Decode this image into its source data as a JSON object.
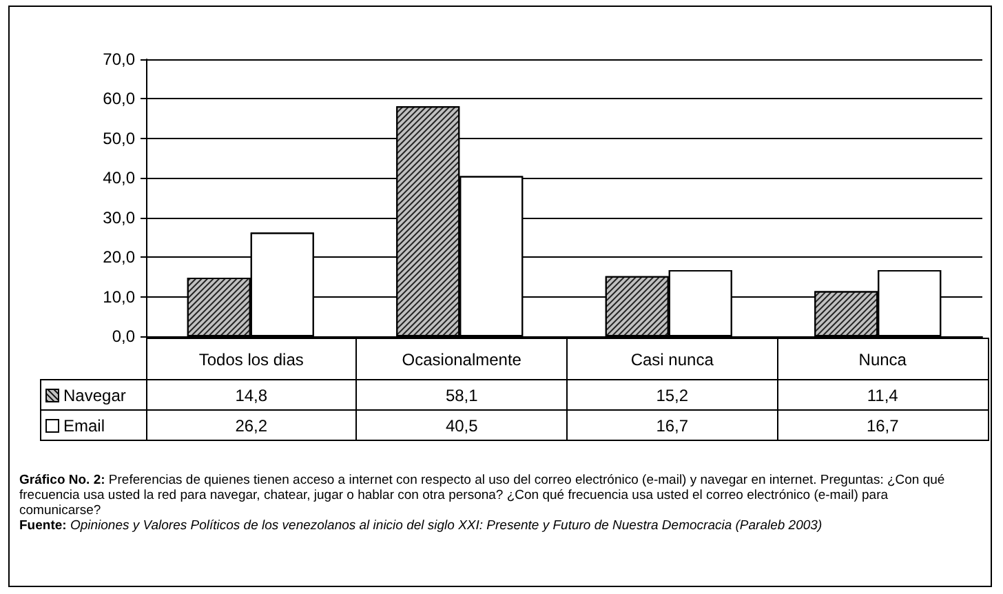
{
  "chart_data": {
    "type": "bar",
    "categories": [
      "Todos los dias",
      "Ocasionalmente",
      "Casi nunca",
      "Nunca"
    ],
    "series": [
      {
        "name": "Navegar",
        "color": "#c0c0c0",
        "values": [
          14.8,
          58.1,
          15.2,
          11.4
        ],
        "value_labels": [
          "14,8",
          "58,1",
          "15,2",
          "11,4"
        ]
      },
      {
        "name": "Email",
        "color": "#ffffff",
        "values": [
          26.2,
          40.5,
          16.7,
          16.7
        ],
        "value_labels": [
          "26,2",
          "40,5",
          "16,7",
          "16,7"
        ]
      }
    ],
    "ylim": [
      0,
      70
    ],
    "yticks": [
      {
        "value": 0,
        "label": "0,0"
      },
      {
        "value": 10,
        "label": "10,0"
      },
      {
        "value": 20,
        "label": "20,0"
      },
      {
        "value": 30,
        "label": "30,0"
      },
      {
        "value": 40,
        "label": "40,0"
      },
      {
        "value": 50,
        "label": "50,0"
      },
      {
        "value": 60,
        "label": "60,0"
      },
      {
        "value": 70,
        "label": "70,0"
      }
    ],
    "grid": "y",
    "legend": "bottom left",
    "annotations": [
      "Gráfico No. 2: Preferencias de quienes tienen acceso a internet con respecto al uso del correo electrónico (e-mail) y navegar en internet. Preguntas: ¿Con qué frecuencia usa usted la red para navegar, chatear, jugar o hablar con otra persona? ¿Con qué frecuencia usa usted el correo electrónico (e-mail) para comunicarse?",
      "Fuente: Opiniones y Valores Políticos de los venezolanos al inicio del siglo XXI: Presente y Futuro de Nuestra Democracia (Paraleb 2003)"
    ]
  }
}
